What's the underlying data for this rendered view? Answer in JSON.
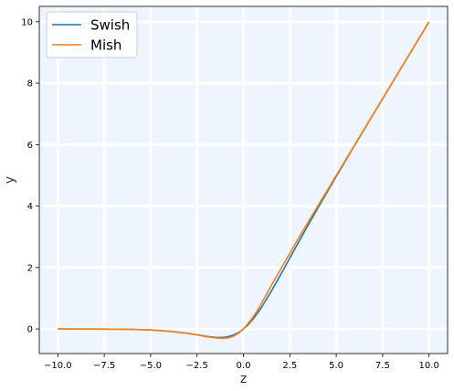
{
  "chart_data": {
    "type": "line",
    "title": "",
    "xlabel": "z",
    "ylabel": "y",
    "xlim": [
      -11,
      11
    ],
    "ylim": [
      -0.8,
      10.5
    ],
    "x_ticks": [
      -10.0,
      -7.5,
      -5.0,
      -2.5,
      0.0,
      2.5,
      5.0,
      7.5,
      10.0
    ],
    "x_tick_labels": [
      "−10.0",
      "−7.5",
      "−5.0",
      "−2.5",
      "0.0",
      "2.5",
      "5.0",
      "7.5",
      "10.0"
    ],
    "y_ticks": [
      0,
      2,
      4,
      6,
      8,
      10
    ],
    "y_tick_labels": [
      "0",
      "2",
      "4",
      "6",
      "8",
      "10"
    ],
    "grid": true,
    "legend": "upper-left",
    "background_color": "#eef5fe",
    "grid_color": "#ffffff",
    "series": [
      {
        "name": "Swish",
        "color": "#1f77b4",
        "x": [
          -10,
          -9,
          -8,
          -7,
          -6,
          -5,
          -4,
          -3,
          -2.5,
          -2,
          -1.5,
          -1.25,
          -1,
          -0.75,
          -0.5,
          -0.25,
          0,
          0.25,
          0.5,
          0.75,
          1,
          1.5,
          2,
          2.5,
          3,
          3.5,
          4,
          5,
          6,
          7,
          8,
          9,
          10
        ],
        "values": [
          -0.0005,
          -0.0011,
          -0.0027,
          -0.0064,
          -0.0148,
          -0.0335,
          -0.0719,
          -0.1423,
          -0.1896,
          -0.2384,
          -0.2736,
          -0.2783,
          -0.2689,
          -0.2405,
          -0.1888,
          -0.1097,
          0.0,
          0.1403,
          0.3112,
          0.512,
          0.7311,
          1.2263,
          1.7616,
          2.3103,
          2.8577,
          3.3988,
          3.9281,
          4.9665,
          5.9852,
          6.9936,
          7.9973,
          8.9989,
          9.9995
        ]
      },
      {
        "name": "Mish",
        "color": "#ff7f0e",
        "x": [
          -10,
          -9,
          -8,
          -7,
          -6,
          -5,
          -4,
          -3,
          -2.5,
          -2,
          -1.5,
          -1.25,
          -1,
          -0.75,
          -0.5,
          -0.25,
          0,
          0.25,
          0.5,
          0.75,
          1,
          1.5,
          2,
          2.5,
          3,
          3.5,
          4,
          5,
          6,
          7,
          8,
          9,
          10
        ],
        "values": [
          -0.0005,
          -0.0011,
          -0.0027,
          -0.0064,
          -0.0149,
          -0.0336,
          -0.0726,
          -0.1456,
          -0.1934,
          -0.2525,
          -0.2913,
          -0.3043,
          -0.3034,
          -0.2791,
          -0.2228,
          -0.1313,
          0.0,
          0.1803,
          0.3752,
          0.6019,
          0.8651,
          1.4129,
          1.944,
          2.4682,
          2.9865,
          3.4971,
          3.9974,
          4.9987,
          5.9996,
          6.9999,
          8.0,
          9.0,
          10.0
        ]
      }
    ]
  }
}
